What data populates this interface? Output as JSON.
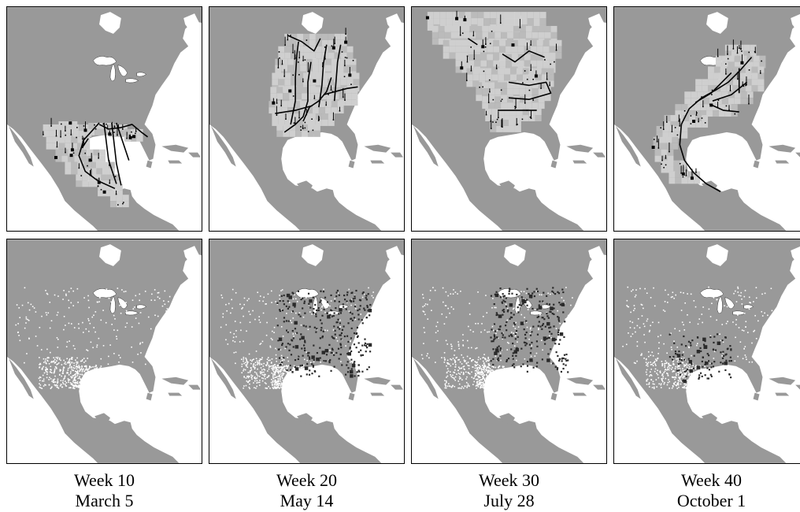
{
  "colors": {
    "land": "#999999",
    "water": "#ffffff",
    "range": "#cfcfcf",
    "range_dark": "#bbbbbb",
    "flow": "#000000",
    "obs_present": "#2a2a2a",
    "obs_absent": "#ffffff"
  },
  "weeks": [
    {
      "week": "Week 10",
      "date": "March 5"
    },
    {
      "week": "Week 20",
      "date": "May 14"
    },
    {
      "week": "Week 30",
      "date": "July 28"
    },
    {
      "week": "Week 40",
      "date": "October 1"
    }
  ]
}
